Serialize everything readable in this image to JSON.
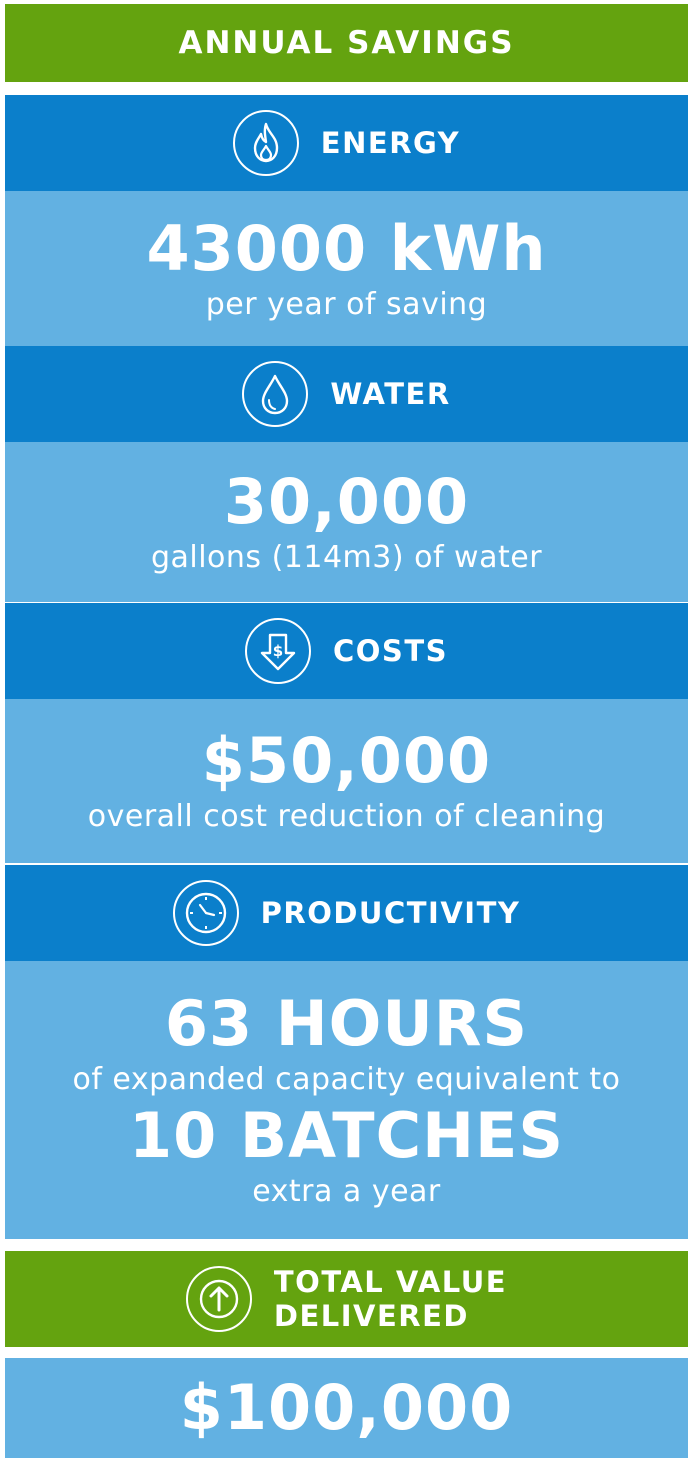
{
  "header": {
    "title": "ANNUAL SAVINGS"
  },
  "energy": {
    "label": "ENERGY",
    "icon": "flame-icon",
    "value": "43000 kWh",
    "caption": "per year of saving"
  },
  "water": {
    "label": "WATER",
    "icon": "water-drop-icon",
    "value": "30,000",
    "caption": "gallons (114m3) of water"
  },
  "costs": {
    "label": "COSTS",
    "icon": "dollar-down-arrow-icon",
    "value": "$50,000",
    "caption": "overall cost reduction of cleaning"
  },
  "productivity": {
    "label": "PRODUCTIVITY",
    "icon": "clock-icon",
    "value": "63 HOURS",
    "caption": "of expanded capacity equivalent to",
    "value2": "10 BATCHES",
    "caption2": "extra a year"
  },
  "total": {
    "label_line1": "TOTAL VALUE",
    "label_line2": "DELIVERED",
    "icon": "up-arrow-icon",
    "value": "$100,000"
  },
  "colors": {
    "green": "#64a30f",
    "dark_blue": "#0b7fcb",
    "light_blue": "#62b1e2",
    "text": "#ffffff"
  }
}
